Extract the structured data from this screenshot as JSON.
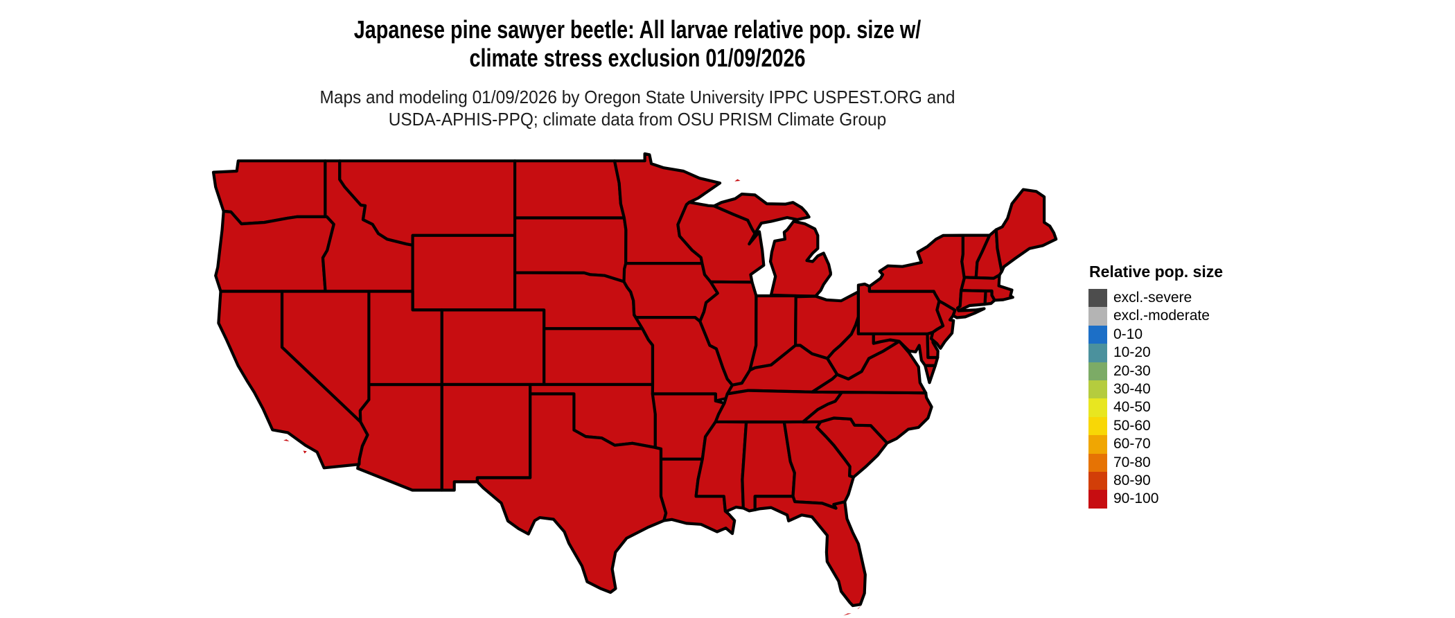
{
  "title": {
    "line1": "Japanese pine sawyer beetle: All larvae relative pop. size w/",
    "line2": "climate stress exclusion 01/09/2026"
  },
  "subtitle": {
    "line1": "Maps and modeling 01/09/2026 by Oregon State University IPPC USPEST.ORG and",
    "line2": "USDA-APHIS-PPQ; climate data from OSU PRISM Climate Group"
  },
  "legend": {
    "title": "Relative pop. size",
    "items": [
      {
        "label": "excl.-severe",
        "color": "#4d4d4d"
      },
      {
        "label": "excl.-moderate",
        "color": "#b4b4b4"
      },
      {
        "label": "0-10",
        "color": "#1c6fc7"
      },
      {
        "label": "10-20",
        "color": "#4b919d"
      },
      {
        "label": "20-30",
        "color": "#7cab66"
      },
      {
        "label": "30-40",
        "color": "#b5cc3e"
      },
      {
        "label": "40-50",
        "color": "#e8e620"
      },
      {
        "label": "50-60",
        "color": "#f8d706"
      },
      {
        "label": "60-70",
        "color": "#f0a602"
      },
      {
        "label": "70-80",
        "color": "#e67304"
      },
      {
        "label": "80-90",
        "color": "#d23e08"
      },
      {
        "label": "90-100",
        "color": "#c70d11"
      }
    ]
  },
  "map": {
    "region": "Contiguous United States",
    "fill_class": "90-100",
    "fill_color": "#c70d11",
    "border_color": "#000000",
    "all_states_value": "90-100",
    "states_shown": [
      "WA",
      "OR",
      "CA",
      "ID",
      "NV",
      "UT",
      "AZ",
      "MT",
      "WY",
      "CO",
      "NM",
      "ND",
      "SD",
      "NE",
      "KS",
      "OK",
      "TX",
      "MN",
      "IA",
      "MO",
      "AR",
      "LA",
      "WI",
      "IL",
      "MS",
      "MI",
      "IN",
      "OH",
      "KY",
      "TN",
      "AL",
      "GA",
      "FL",
      "SC",
      "NC",
      "VA",
      "WV",
      "PA",
      "NY",
      "NJ",
      "DE",
      "MD",
      "VT",
      "NH",
      "ME",
      "MA",
      "RI",
      "CT"
    ]
  }
}
